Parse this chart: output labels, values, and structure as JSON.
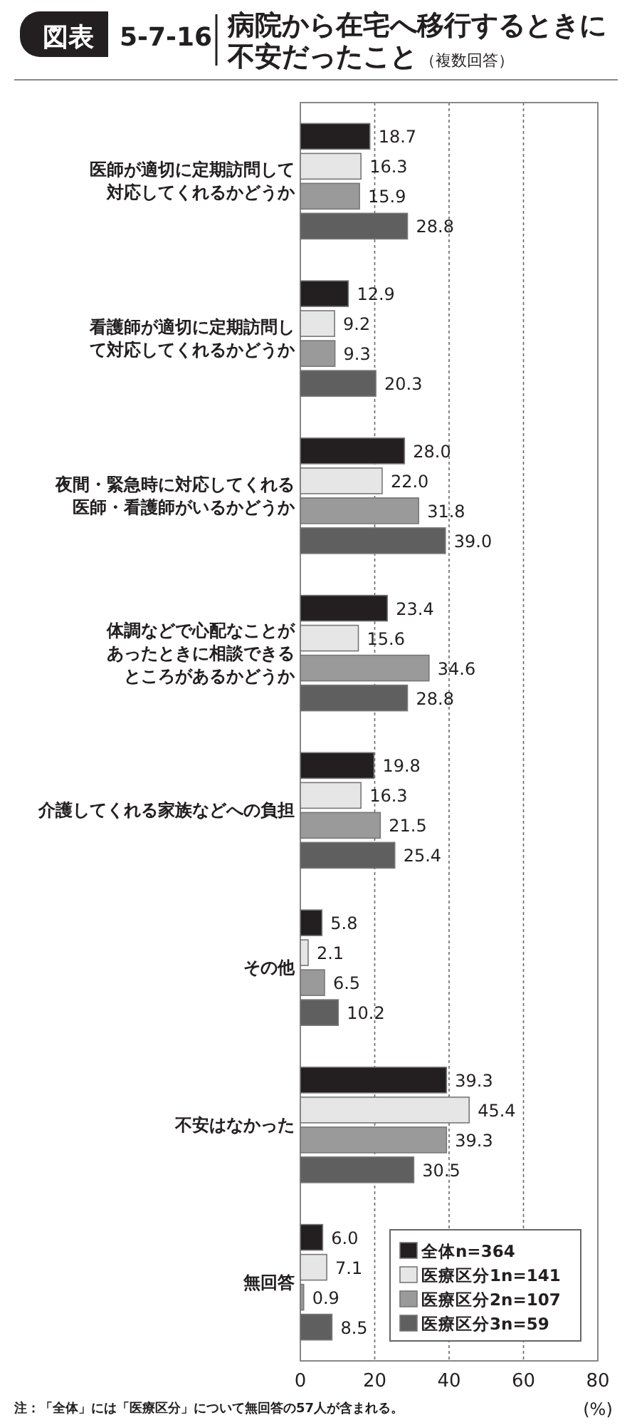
{
  "chart_data": {
    "type": "bar",
    "orientation": "horizontal",
    "title": "病院から在宅へ移行するときに不安だったこと",
    "subtitle": "（複数回答）",
    "xlabel": "(%)",
    "annotations": [
      "図表",
      "5-7-16",
      "注：「全体」には「医療区分」について無回答の57人が含まれる。"
    ],
    "categories": [
      "医師が適切に定期訪問して対応してくれるかどうか",
      "看護師が適切に定期訪問して対応してくれるかどうか",
      "夜間・緊急時に対応してくれる医師・看護師がいるかどうか",
      "体調などで心配なことがあったときに相談できるところがあるかどうか",
      "介護してくれる家族などへの負担",
      "その他",
      "不安はなかった",
      "無回答"
    ],
    "series": [
      {
        "name": "全体n=364",
        "color": "#231f20",
        "values": [
          18.7,
          12.9,
          28.0,
          23.4,
          19.8,
          5.8,
          39.3,
          6.0
        ],
        "value_labels": [
          "18.7",
          "12.9",
          "28.0",
          "23.4",
          "19.8",
          "5.8",
          "39.3",
          "6.0"
        ]
      },
      {
        "name": "医療区分1n=141",
        "color": "#e6e6e6",
        "values": [
          16.3,
          9.2,
          22.0,
          15.6,
          16.3,
          2.1,
          45.4,
          7.1
        ],
        "value_labels": [
          "16.3",
          "9.2",
          "22.0",
          "15.6",
          "16.3",
          "2.1",
          "45.4",
          "7.1"
        ]
      },
      {
        "name": "医療区分2n=107",
        "color": "#9a9a9a",
        "values": [
          15.9,
          9.3,
          31.8,
          34.6,
          21.5,
          6.5,
          39.3,
          0.9
        ],
        "value_labels": [
          "15.9",
          "9.3",
          "31.8",
          "34.6",
          "21.5",
          "6.5",
          "39.3",
          "0.9"
        ]
      },
      {
        "name": "医療区分3n=59",
        "color": "#5f5f5f",
        "values": [
          28.8,
          20.3,
          39.0,
          28.8,
          25.4,
          10.2,
          30.5,
          8.5
        ],
        "value_labels": [
          "28.8",
          "20.3",
          "39.0",
          "28.8",
          "25.4",
          "10.2",
          "30.5",
          "8.5"
        ]
      }
    ],
    "xlim": [
      0,
      80
    ],
    "xticks": [
      0,
      20,
      40,
      60,
      80
    ],
    "grid": "x",
    "legend": "bottom right"
  }
}
